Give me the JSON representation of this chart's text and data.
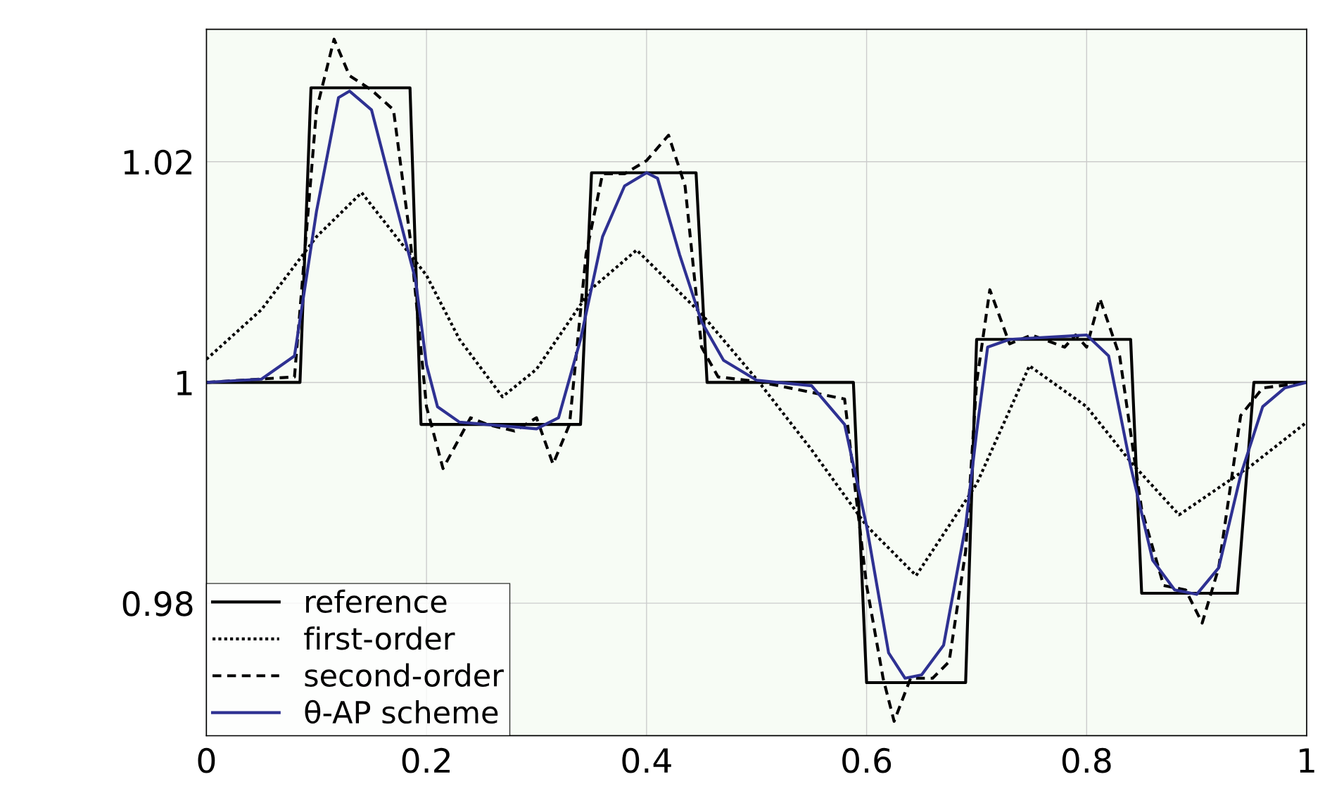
{
  "chart_data": {
    "type": "line",
    "xlim": [
      0,
      1
    ],
    "ylim": [
      0.968,
      1.032
    ],
    "xticks": [
      0,
      0.2,
      0.4,
      0.6,
      0.8,
      1
    ],
    "yticks": [
      0.98,
      1,
      1.02
    ],
    "grid": true,
    "legend": "bottom left",
    "marker": "none",
    "series": [
      {
        "name": "reference",
        "color": "#000000",
        "line_style": "solid",
        "x": [
          0,
          0.085,
          0.095,
          0.185,
          0.195,
          0.34,
          0.35,
          0.445,
          0.455,
          0.588,
          0.6,
          0.69,
          0.7,
          0.84,
          0.85,
          0.937,
          0.952,
          1
        ],
        "values": [
          1,
          1,
          1.0267,
          1.0267,
          0.9962,
          0.9962,
          1.019,
          1.019,
          1,
          1,
          0.9728,
          0.9728,
          1.0039,
          1.0039,
          0.9809,
          0.9809,
          1,
          1
        ]
      },
      {
        "name": "first-order",
        "color": "#000000",
        "line_style": "dotted",
        "x": [
          0,
          0.05,
          0.1,
          0.141,
          0.2,
          0.23,
          0.269,
          0.3,
          0.35,
          0.391,
          0.45,
          0.5,
          0.55,
          0.6,
          0.645,
          0.7,
          0.748,
          0.8,
          0.84,
          0.884,
          0.95,
          1
        ],
        "values": [
          1.0021,
          1.0066,
          1.0132,
          1.0172,
          1.0097,
          1.0039,
          0.9987,
          1.0012,
          1.0085,
          1.012,
          1.0062,
          1.0003,
          0.9939,
          0.987,
          0.9825,
          0.9908,
          1.0015,
          0.9978,
          0.9928,
          0.988,
          0.9925,
          0.9964
        ]
      },
      {
        "name": "second-order",
        "color": "#000000",
        "line_style": "dashed",
        "x": [
          0,
          0.08,
          0.1,
          0.116,
          0.13,
          0.15,
          0.17,
          0.185,
          0.2,
          0.215,
          0.24,
          0.255,
          0.28,
          0.3,
          0.315,
          0.33,
          0.345,
          0.36,
          0.38,
          0.4,
          0.42,
          0.435,
          0.45,
          0.465,
          0.5,
          0.58,
          0.6,
          0.615,
          0.625,
          0.64,
          0.66,
          0.675,
          0.69,
          0.7,
          0.712,
          0.73,
          0.75,
          0.78,
          0.79,
          0.8,
          0.812,
          0.83,
          0.85,
          0.87,
          0.89,
          0.905,
          0.92,
          0.94,
          0.96,
          1
        ],
        "values": [
          1,
          1.0005,
          1.0247,
          1.0311,
          1.0278,
          1.0265,
          1.0247,
          1.0132,
          0.9978,
          0.9922,
          0.9968,
          0.9962,
          0.9956,
          0.9968,
          0.9926,
          0.9962,
          1.0116,
          1.0189,
          1.0189,
          1.0201,
          1.0224,
          1.0178,
          1.0032,
          1.0005,
          1.0001,
          0.9985,
          0.9816,
          0.9732,
          0.9693,
          0.9732,
          0.9732,
          0.9747,
          0.9847,
          1,
          1.0084,
          1.0035,
          1.0043,
          1.0032,
          1.0043,
          1.0032,
          1.0076,
          1.0024,
          0.9885,
          0.9816,
          0.9812,
          0.9782,
          0.9832,
          0.997,
          0.9995,
          1
        ]
      },
      {
        "name": "θ-AP scheme",
        "color": "#2e3192",
        "line_style": "solid",
        "x": [
          0,
          0.05,
          0.08,
          0.1,
          0.12,
          0.13,
          0.15,
          0.17,
          0.19,
          0.2,
          0.21,
          0.23,
          0.3,
          0.32,
          0.34,
          0.36,
          0.38,
          0.4,
          0.41,
          0.43,
          0.45,
          0.47,
          0.5,
          0.55,
          0.58,
          0.6,
          0.62,
          0.635,
          0.65,
          0.67,
          0.69,
          0.7,
          0.71,
          0.73,
          0.8,
          0.82,
          0.84,
          0.86,
          0.88,
          0.9,
          0.92,
          0.94,
          0.96,
          0.98,
          1
        ],
        "values": [
          1,
          1.0003,
          1.0024,
          1.0155,
          1.0258,
          1.0264,
          1.0247,
          1.017,
          1.0093,
          1.0016,
          0.9978,
          0.9964,
          0.9958,
          0.9968,
          1.0039,
          1.0132,
          1.0178,
          1.019,
          1.0185,
          1.0116,
          1.0055,
          1.002,
          1.0002,
          0.9997,
          0.9962,
          0.987,
          0.9755,
          0.9732,
          0.9735,
          0.9762,
          0.987,
          0.9955,
          1.0032,
          1.0039,
          1.0043,
          1.0024,
          0.9924,
          0.9839,
          0.9812,
          0.9808,
          0.9832,
          0.9916,
          0.9978,
          0.9995,
          1
        ]
      }
    ]
  }
}
